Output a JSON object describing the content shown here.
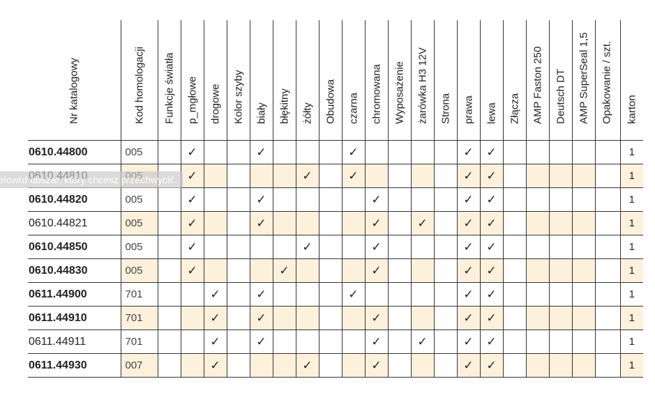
{
  "headers": [
    "Nr katalogowy",
    "Kod homologacji",
    "Funkcje światła",
    "p_mgłowe",
    "drogowe",
    "Kolor szyby",
    "biały",
    "błękitny",
    "żółty",
    "Obudowa",
    "czarna",
    "chromowana",
    "Wyposażenie",
    "żarówka H3 12V",
    "Strona",
    "prawa",
    "lewa",
    "Złącza",
    "AMP Faston 250",
    "Deutsch DT",
    "AMP SuperSeal 1,5",
    "Opakowanie / szt.",
    "karton"
  ],
  "rows": [
    {
      "nr": "0610.44800",
      "bold": true,
      "kod": "005",
      "p_mglowe": true,
      "drogowe": false,
      "bialy": true,
      "blekitny": false,
      "zolty": false,
      "czarna": true,
      "chromowana": false,
      "zarowka": false,
      "prawa": true,
      "lewa": true,
      "karton": "1"
    },
    {
      "nr": "0610.44810",
      "bold": false,
      "kod": "005",
      "p_mglowe": true,
      "drogowe": false,
      "bialy": false,
      "blekitny": false,
      "zolty": true,
      "czarna": true,
      "chromowana": false,
      "zarowka": false,
      "prawa": true,
      "lewa": true,
      "karton": "1"
    },
    {
      "nr": "0610.44820",
      "bold": true,
      "kod": "005",
      "p_mglowe": true,
      "drogowe": false,
      "bialy": true,
      "blekitny": false,
      "zolty": false,
      "czarna": false,
      "chromowana": true,
      "zarowka": false,
      "prawa": true,
      "lewa": true,
      "karton": "1"
    },
    {
      "nr": "0610.44821",
      "bold": false,
      "kod": "005",
      "p_mglowe": true,
      "drogowe": false,
      "bialy": true,
      "blekitny": false,
      "zolty": false,
      "czarna": false,
      "chromowana": true,
      "zarowka": true,
      "prawa": true,
      "lewa": true,
      "karton": "1"
    },
    {
      "nr": "0610.44850",
      "bold": true,
      "kod": "005",
      "p_mglowe": true,
      "drogowe": false,
      "bialy": false,
      "blekitny": false,
      "zolty": true,
      "czarna": false,
      "chromowana": true,
      "zarowka": false,
      "prawa": true,
      "lewa": true,
      "karton": "1"
    },
    {
      "nr": "0610.44830",
      "bold": true,
      "kod": "005",
      "p_mglowe": true,
      "drogowe": false,
      "bialy": false,
      "blekitny": true,
      "zolty": false,
      "czarna": false,
      "chromowana": true,
      "zarowka": false,
      "prawa": true,
      "lewa": true,
      "karton": "1"
    },
    {
      "nr": "0611.44900",
      "bold": true,
      "kod": "701",
      "p_mglowe": false,
      "drogowe": true,
      "bialy": true,
      "blekitny": false,
      "zolty": false,
      "czarna": true,
      "chromowana": false,
      "zarowka": false,
      "prawa": true,
      "lewa": true,
      "karton": "1"
    },
    {
      "nr": "0611.44910",
      "bold": true,
      "kod": "701",
      "p_mglowe": false,
      "drogowe": true,
      "bialy": true,
      "blekitny": false,
      "zolty": false,
      "czarna": false,
      "chromowana": true,
      "zarowka": false,
      "prawa": true,
      "lewa": true,
      "karton": "1"
    },
    {
      "nr": "0611.44911",
      "bold": false,
      "kod": "701",
      "p_mglowe": false,
      "drogowe": true,
      "bialy": true,
      "blekitny": false,
      "zolty": false,
      "czarna": false,
      "chromowana": true,
      "zarowka": true,
      "prawa": true,
      "lewa": true,
      "karton": "1"
    },
    {
      "nr": "0611.44930",
      "bold": true,
      "kod": "007",
      "p_mglowe": false,
      "drogowe": true,
      "bialy": false,
      "blekitny": false,
      "zolty": true,
      "czarna": false,
      "chromowana": true,
      "zarowka": false,
      "prawa": true,
      "lewa": true,
      "karton": "1"
    }
  ],
  "check_glyph": "✓",
  "overlay_text": "elowrd       obszar, który chcesz przechwycić.",
  "colors": {
    "shaded_row": "#fdf1dc",
    "grid": "#333333",
    "overlay": "#c8c8c8"
  }
}
